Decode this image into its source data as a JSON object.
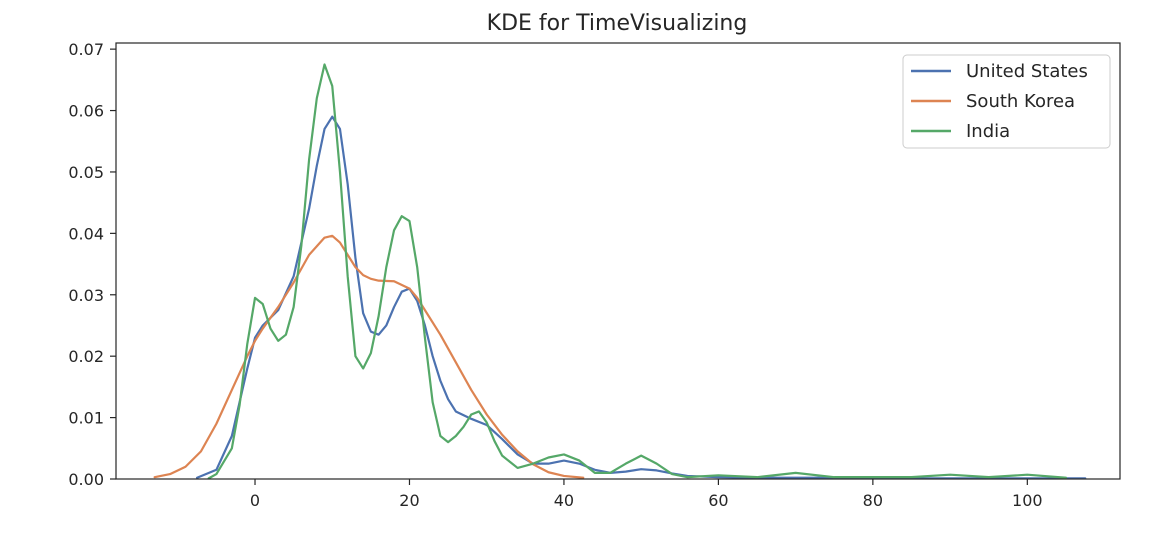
{
  "chart_data": {
    "type": "line",
    "title": "KDE for TimeVisualizing",
    "xlabel": "",
    "ylabel": "",
    "xlim": [
      -18,
      112
    ],
    "ylim": [
      0,
      0.071
    ],
    "xticks": [
      "0",
      "20",
      "40",
      "60",
      "80",
      "100"
    ],
    "xtick_values": [
      0,
      20,
      40,
      60,
      80,
      100
    ],
    "yticks": [
      "0.00",
      "0.01",
      "0.02",
      "0.03",
      "0.04",
      "0.05",
      "0.06",
      "0.07"
    ],
    "ytick_values": [
      0,
      0.01,
      0.02,
      0.03,
      0.04,
      0.05,
      0.06,
      0.07
    ],
    "grid": false,
    "legend_position": "top-right",
    "series": [
      {
        "name": "United States",
        "color": "#4c72b0",
        "x": [
          -7.5,
          -5,
          -3,
          -1,
          0,
          1,
          3,
          5,
          7,
          8,
          9,
          10,
          11,
          12,
          13,
          14,
          15,
          16,
          17,
          18,
          19,
          20,
          21,
          22,
          23,
          24,
          25,
          26,
          28,
          30,
          32,
          34,
          36,
          38,
          40,
          42,
          44,
          46,
          48,
          50,
          52,
          54,
          56,
          60,
          65,
          70,
          75,
          80,
          85,
          90,
          95,
          100,
          105,
          107.5
        ],
        "y": [
          0.0002,
          0.0015,
          0.007,
          0.018,
          0.023,
          0.025,
          0.0275,
          0.033,
          0.044,
          0.051,
          0.057,
          0.059,
          0.057,
          0.048,
          0.036,
          0.027,
          0.024,
          0.0235,
          0.025,
          0.028,
          0.0305,
          0.031,
          0.029,
          0.025,
          0.02,
          0.016,
          0.013,
          0.011,
          0.0098,
          0.0088,
          0.0065,
          0.004,
          0.0025,
          0.0025,
          0.003,
          0.0025,
          0.0015,
          0.001,
          0.0012,
          0.0016,
          0.0014,
          0.0009,
          0.0005,
          0.0003,
          0.0002,
          0.0002,
          0.0002,
          0.0001,
          0.0001,
          0.0001,
          0.0001,
          0.0001,
          0.0001,
          0.0001
        ]
      },
      {
        "name": "South Korea",
        "color": "#dd8452",
        "x": [
          -13,
          -11,
          -9,
          -7,
          -5,
          -3,
          -1,
          0,
          1,
          3,
          5,
          7,
          9,
          10,
          11,
          12,
          13,
          14,
          15,
          16,
          18,
          20,
          21,
          22,
          24,
          26,
          28,
          30,
          32,
          34,
          36,
          38,
          40,
          42.5
        ],
        "y": [
          0.0003,
          0.0008,
          0.002,
          0.0045,
          0.009,
          0.0145,
          0.02,
          0.0225,
          0.0245,
          0.028,
          0.032,
          0.0365,
          0.0393,
          0.0396,
          0.0385,
          0.0365,
          0.0345,
          0.0332,
          0.0326,
          0.0323,
          0.0322,
          0.031,
          0.0295,
          0.0275,
          0.0235,
          0.019,
          0.0145,
          0.0105,
          0.0072,
          0.0045,
          0.0024,
          0.0011,
          0.0005,
          0.0002
        ]
      },
      {
        "name": "India",
        "color": "#55a868",
        "x": [
          -6,
          -5,
          -3,
          -2,
          -1,
          0,
          1,
          2,
          3,
          4,
          5,
          6,
          7,
          8,
          9,
          10,
          11,
          12,
          13,
          14,
          15,
          16,
          17,
          18,
          19,
          20,
          21,
          22,
          23,
          24,
          25,
          26,
          27,
          28,
          29,
          30,
          31,
          32,
          34,
          36,
          38,
          40,
          42,
          44,
          46,
          48,
          50,
          52,
          54,
          56,
          60,
          65,
          70,
          75,
          80,
          85,
          90,
          95,
          100,
          105
        ],
        "y": [
          0.0001,
          0.0008,
          0.005,
          0.012,
          0.022,
          0.0295,
          0.0285,
          0.0245,
          0.0225,
          0.0235,
          0.028,
          0.038,
          0.052,
          0.062,
          0.0675,
          0.064,
          0.05,
          0.033,
          0.02,
          0.018,
          0.0205,
          0.0265,
          0.0345,
          0.0405,
          0.0428,
          0.042,
          0.0345,
          0.023,
          0.0125,
          0.007,
          0.006,
          0.007,
          0.0085,
          0.0105,
          0.011,
          0.0092,
          0.0062,
          0.0038,
          0.0018,
          0.0025,
          0.0035,
          0.004,
          0.003,
          0.001,
          0.001,
          0.0025,
          0.0038,
          0.0025,
          0.0008,
          0.0003,
          0.0006,
          0.0003,
          0.001,
          0.0003,
          0.0003,
          0.0003,
          0.0007,
          0.0003,
          0.0007,
          0.0002
        ]
      }
    ]
  }
}
